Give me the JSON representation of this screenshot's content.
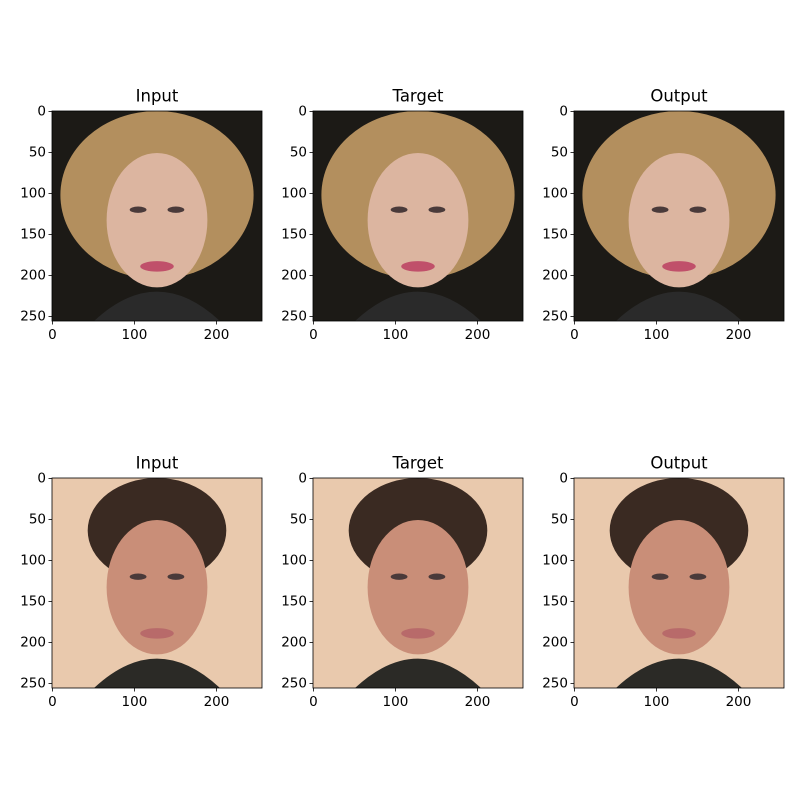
{
  "chart_data": [
    {
      "type": "image",
      "title": "Input",
      "xlim": [
        -0.5,
        255.5
      ],
      "ylim": [
        255.5,
        -0.5
      ],
      "xticks": [
        0,
        100,
        200
      ],
      "yticks": [
        0,
        50,
        100,
        150,
        200,
        250
      ]
    },
    {
      "type": "image",
      "title": "Target",
      "xlim": [
        -0.5,
        255.5
      ],
      "ylim": [
        255.5,
        -0.5
      ],
      "xticks": [
        0,
        100,
        200
      ],
      "yticks": [
        0,
        50,
        100,
        150,
        200,
        250
      ]
    },
    {
      "type": "image",
      "title": "Output",
      "xlim": [
        -0.5,
        255.5
      ],
      "ylim": [
        255.5,
        -0.5
      ],
      "xticks": [
        0,
        100,
        200
      ],
      "yticks": [
        0,
        50,
        100,
        150,
        200,
        250
      ]
    },
    {
      "type": "image",
      "title": "Input",
      "xlim": [
        -0.5,
        255.5
      ],
      "ylim": [
        255.5,
        -0.5
      ],
      "xticks": [
        0,
        100,
        200
      ],
      "yticks": [
        0,
        50,
        100,
        150,
        200,
        250
      ]
    },
    {
      "type": "image",
      "title": "Target",
      "xlim": [
        -0.5,
        255.5
      ],
      "ylim": [
        255.5,
        -0.5
      ],
      "xticks": [
        0,
        100,
        200
      ],
      "yticks": [
        0,
        50,
        100,
        150,
        200,
        250
      ]
    },
    {
      "type": "image",
      "title": "Output",
      "xlim": [
        -0.5,
        255.5
      ],
      "ylim": [
        255.5,
        -0.5
      ],
      "xticks": [
        0,
        100,
        200
      ],
      "yticks": [
        0,
        50,
        100,
        150,
        200,
        250
      ]
    }
  ]
}
